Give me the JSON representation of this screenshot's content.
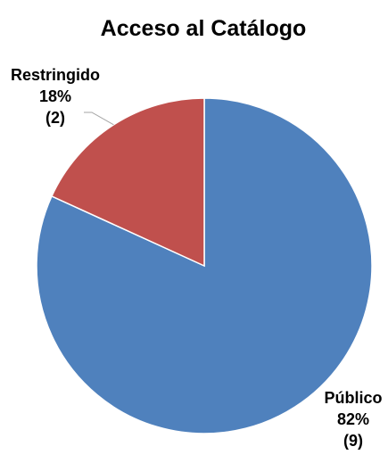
{
  "chart_data": {
    "type": "pie",
    "title": "Acceso al Catálogo",
    "slices": [
      {
        "label": "Público",
        "value": 9,
        "percent": "82%",
        "count": "(9)",
        "color": "#4F81BD"
      },
      {
        "label": "Restringido",
        "value": 2,
        "percent": "18%",
        "count": "(2)",
        "color": "#C0504D"
      }
    ],
    "start_angle_deg": 0,
    "direction": "clockwise",
    "slice_border_color": "#ffffff",
    "leader_line_color": "#A6A6A6",
    "legend": "none"
  }
}
